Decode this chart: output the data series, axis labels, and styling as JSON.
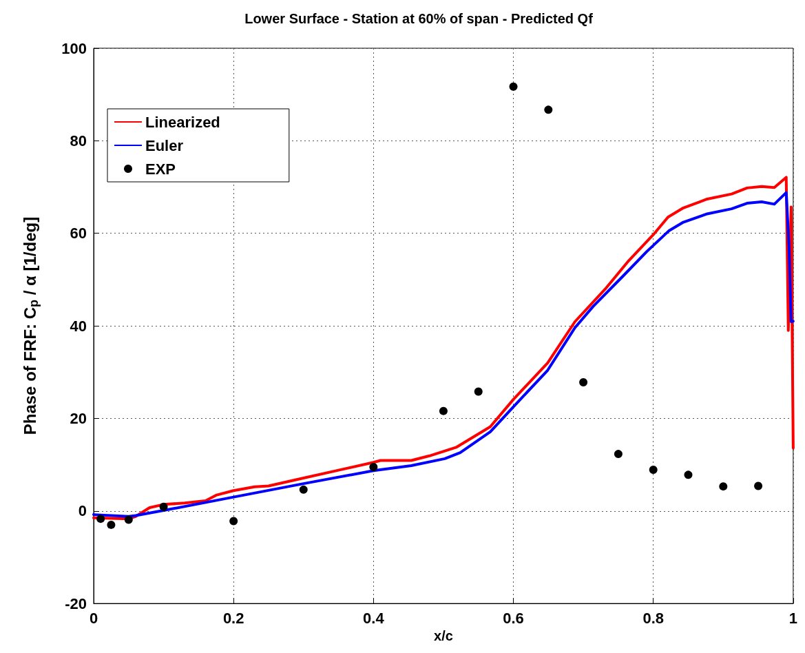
{
  "chart_data": {
    "type": "line",
    "title": "Lower Surface - Station at 60% of span - Predicted Qf",
    "xlabel": "x/c",
    "ylabel": "Phase of FRF: C$_{p}$ / α [1/deg]",
    "xlim": [
      0,
      1
    ],
    "xticks": [
      0,
      0.2,
      0.4,
      0.6,
      0.8,
      1
    ],
    "ylim": [
      -20,
      100
    ],
    "yticks": [
      -20,
      0,
      20,
      40,
      60,
      80,
      100
    ],
    "grid": true,
    "legend": "top left",
    "line_style": "solid",
    "series": [
      {
        "name": "Linearized",
        "color": "#ff0000",
        "type": "line",
        "x": [
          0,
          0.05,
          0.06,
          0.08,
          0.1,
          0.13,
          0.16,
          0.175,
          0.2,
          0.23,
          0.25,
          0.3,
          0.35,
          0.4,
          0.41,
          0.454,
          0.48,
          0.519,
          0.567,
          0.6,
          0.649,
          0.688,
          0.731,
          0.765,
          0.8,
          0.821,
          0.843,
          0.877,
          0.912,
          0.934,
          0.955,
          0.973,
          0.99,
          0.993,
          0.997,
          1
        ],
        "values": [
          -1.5,
          -1.7,
          -1.2,
          0.7,
          1.4,
          1.7,
          2.2,
          3.4,
          4.4,
          5.2,
          5.4,
          7.1,
          8.8,
          10.5,
          10.9,
          10.9,
          11.9,
          13.8,
          18.2,
          24.1,
          32.0,
          40.9,
          47.9,
          54.1,
          59.7,
          63.5,
          65.5,
          67.4,
          68.5,
          69.8,
          70.1,
          69.9,
          72.1,
          39,
          65.7,
          13.6
        ]
      },
      {
        "name": "Euler",
        "color": "#0000ff",
        "type": "line",
        "x": [
          0,
          0.05,
          0.06,
          0.1,
          0.2,
          0.3,
          0.4,
          0.454,
          0.502,
          0.524,
          0.567,
          0.6,
          0.649,
          0.688,
          0.714,
          0.757,
          0.791,
          0.822,
          0.843,
          0.877,
          0.912,
          0.934,
          0.955,
          0.973,
          0.99,
          0.994,
          0.997,
          1
        ],
        "values": [
          -0.8,
          -1.2,
          -1.0,
          0.1,
          3.0,
          5.9,
          8.7,
          9.8,
          11.3,
          12.6,
          17.1,
          22.5,
          30.4,
          39.6,
          44.2,
          50.8,
          56.1,
          60.5,
          62.4,
          64.2,
          65.3,
          66.5,
          66.8,
          66.3,
          68.8,
          57.4,
          40.9,
          41
        ]
      },
      {
        "name": "EXP",
        "color": "#000000",
        "type": "scatter",
        "marker": "circle",
        "x": [
          0.01,
          0.025,
          0.05,
          0.1,
          0.2,
          0.3,
          0.4,
          0.5,
          0.55,
          0.6,
          0.65,
          0.7,
          0.75,
          0.8,
          0.85,
          0.9,
          0.95
        ],
        "values": [
          -1.7,
          -3.0,
          -1.9,
          0.9,
          -2.2,
          4.6,
          9.5,
          21.6,
          25.8,
          91.7,
          86.7,
          27.8,
          12.3,
          8.9,
          7.8,
          5.3,
          5.4
        ]
      }
    ]
  }
}
